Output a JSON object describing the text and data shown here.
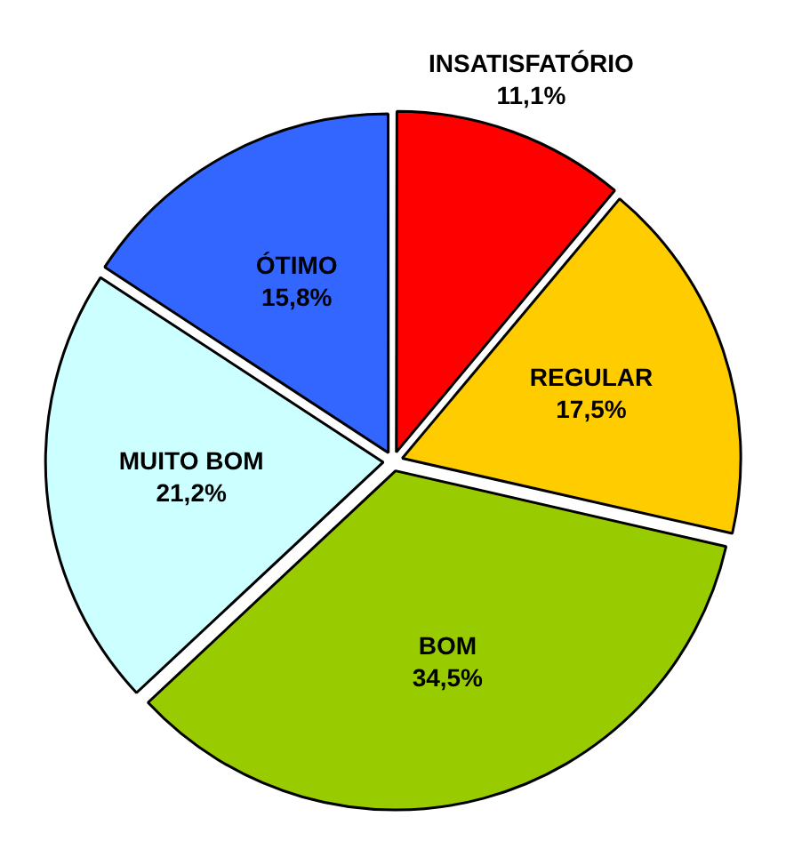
{
  "chart_data": {
    "type": "pie",
    "categories": [
      "INSATISFATÓRIO",
      "REGULAR",
      "BOM",
      "MUITO BOM",
      "ÓTIMO"
    ],
    "values": [
      11.1,
      17.5,
      34.5,
      21.2,
      15.8
    ],
    "value_labels": [
      "11,1%",
      "17,5%",
      "34,5%",
      "21,2%",
      "15,8%"
    ],
    "colors": [
      "#ff0000",
      "#ffcc00",
      "#99cc00",
      "#ccffff",
      "#3366ff"
    ],
    "legend": false
  }
}
